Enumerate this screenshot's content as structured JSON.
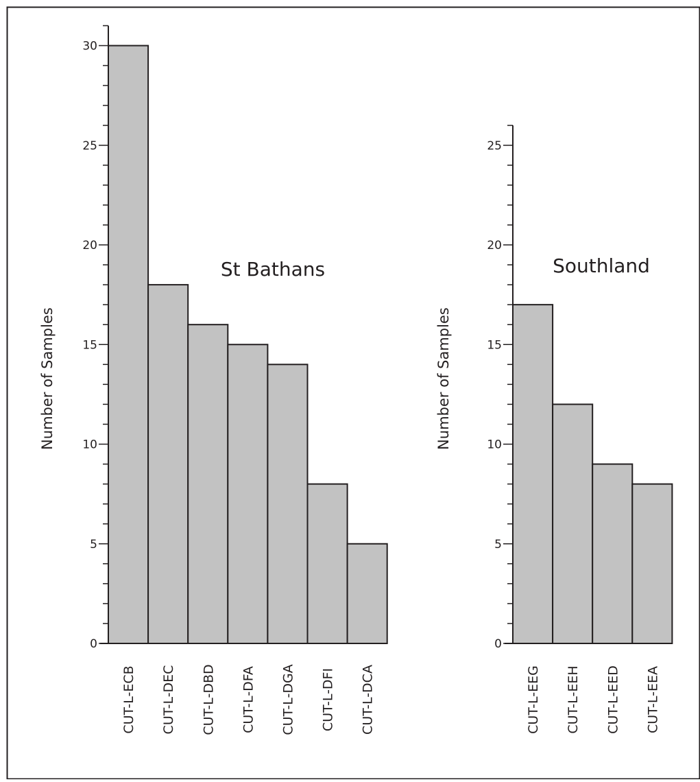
{
  "chart_data": [
    {
      "type": "bar",
      "title": "St Bathans",
      "xlabel": "",
      "ylabel": "Number of Samples",
      "categories": [
        "CUT-L-ECB",
        "CUT-L-DEC",
        "CUT-L-DBD",
        "CUT-L-DFA",
        "CUT-L-DGA",
        "CUT-L-DFI",
        "CUT-L-DCA"
      ],
      "values": [
        30,
        18,
        16,
        15,
        14,
        8,
        5
      ],
      "ylim": [
        0,
        31
      ],
      "yticks": [
        0,
        5,
        10,
        15,
        20,
        25,
        30
      ],
      "minor_tick_step": 1,
      "grid": false,
      "bar_color": "#c2c2c2",
      "edge_color": "#231f20"
    },
    {
      "type": "bar",
      "title": "Southland",
      "xlabel": "",
      "ylabel": "Number of Samples",
      "categories": [
        "CUT-L-EEG",
        "CUT-L-EEH",
        "CUT-L-EED",
        "CUT-L-EEA"
      ],
      "values": [
        17,
        12,
        9,
        8
      ],
      "ylim": [
        0,
        26
      ],
      "yticks": [
        0,
        5,
        10,
        15,
        20,
        25
      ],
      "minor_tick_step": 1,
      "grid": false,
      "bar_color": "#c2c2c2",
      "edge_color": "#231f20"
    }
  ]
}
